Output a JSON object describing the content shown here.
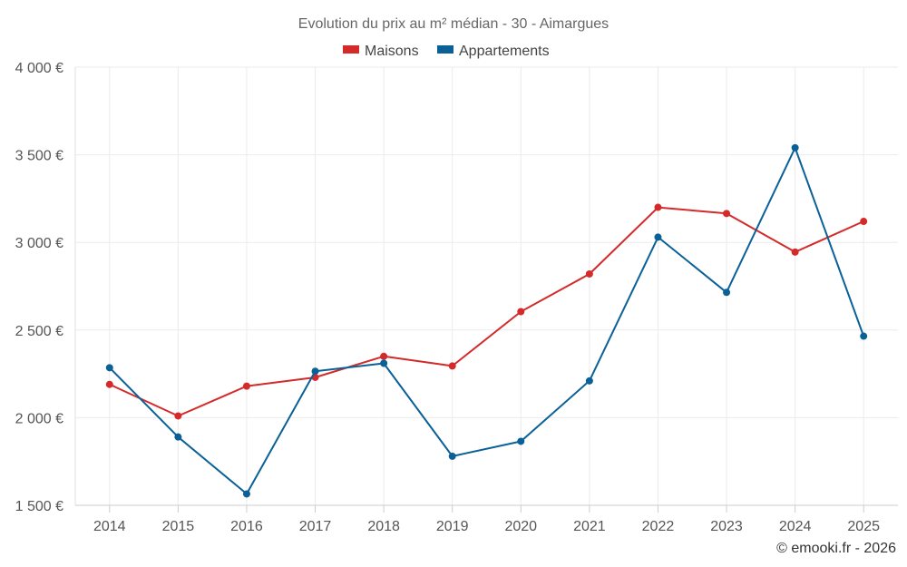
{
  "chart_data": {
    "type": "line",
    "title": "Evolution du prix au m² médian - 30 - Aimargues",
    "xlabel": "",
    "ylabel": "",
    "categories": [
      "2014",
      "2015",
      "2016",
      "2017",
      "2018",
      "2019",
      "2020",
      "2021",
      "2022",
      "2023",
      "2024",
      "2025"
    ],
    "ylim": [
      1500,
      4000
    ],
    "yticks": [
      1500,
      2000,
      2500,
      3000,
      3500,
      4000
    ],
    "ytick_labels": [
      "1 500 €",
      "2 000 €",
      "2 500 €",
      "3 000 €",
      "3 500 €",
      "4 000 €"
    ],
    "grid": true,
    "legend_position": "top-center",
    "series": [
      {
        "name": "Maisons",
        "color": "#d42a2a",
        "values": [
          2190,
          2010,
          2180,
          2230,
          2350,
          2295,
          2605,
          2820,
          3200,
          3165,
          2945,
          3120
        ]
      },
      {
        "name": "Appartements",
        "color": "#0b6197",
        "values": [
          2285,
          1890,
          1565,
          2265,
          2310,
          1780,
          1865,
          2210,
          3030,
          2715,
          3540,
          2465
        ]
      }
    ],
    "credit": "© emooki.fr - 2026"
  }
}
